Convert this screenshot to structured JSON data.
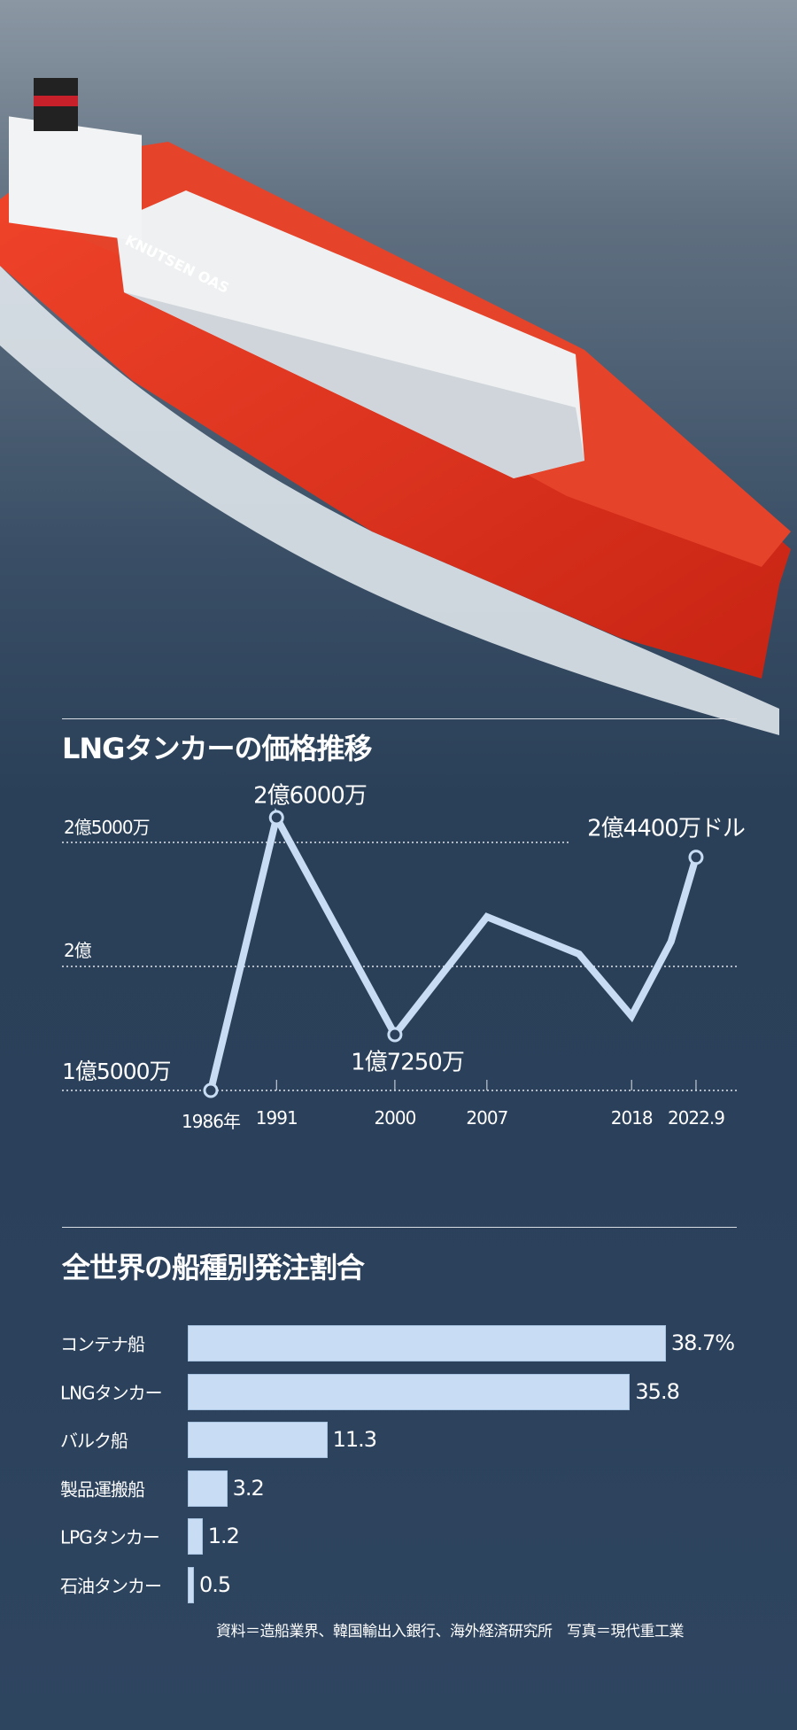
{
  "photo": {
    "hull_lettering": "KNUTSEN OAS"
  },
  "colors": {
    "line": "#c8ddf3",
    "bar": "#c8ddf3",
    "hull": "#e8371f",
    "sea": "#2b405a"
  },
  "chart_data": [
    {
      "type": "line",
      "title": "LNGタンカーの価格推移",
      "x_tick_labels": [
        "1986年",
        "1991",
        "2000",
        "2007",
        "2018",
        "2022.9"
      ],
      "x_ticks": [
        1986,
        1991,
        2000,
        2007,
        2018,
        2022.9
      ],
      "y_gridlines": [
        {
          "value": 2.5,
          "label": "2億5000万"
        },
        {
          "value": 2.0,
          "label": "2億"
        },
        {
          "value": 1.5,
          "label": "1億5000万"
        }
      ],
      "y_unit": "億ドル",
      "points": [
        {
          "x": 1986,
          "y": 1.5,
          "marker": true
        },
        {
          "x": 1991,
          "y": 2.6,
          "marker": true,
          "label": "2億6000万"
        },
        {
          "x": 2000,
          "y": 1.725,
          "marker": true,
          "label": "1億7250万"
        },
        {
          "x": 2007,
          "y": 2.2
        },
        {
          "x": 2014,
          "y": 2.05
        },
        {
          "x": 2018,
          "y": 1.8
        },
        {
          "x": 2021,
          "y": 2.1
        },
        {
          "x": 2022.9,
          "y": 2.44,
          "marker": true,
          "label": "2億4400万ドル"
        }
      ],
      "grid": "dotted horizontal"
    },
    {
      "type": "bar",
      "orientation": "horizontal",
      "title": "全世界の船種別発注割合",
      "categories": [
        "コンテナ船",
        "LNGタンカー",
        "バルク船",
        "製品運搬船",
        "LPGタンカー",
        "石油タンカー"
      ],
      "values": [
        38.7,
        35.8,
        11.3,
        3.2,
        1.2,
        0.5
      ],
      "value_labels": [
        "38.7%",
        "35.8",
        "11.3",
        "3.2",
        "1.2",
        "0.5"
      ],
      "unit": "%"
    }
  ],
  "footer": "資料＝造船業界、韓国輸出入銀行、海外経済研究所　写真＝現代重工業"
}
